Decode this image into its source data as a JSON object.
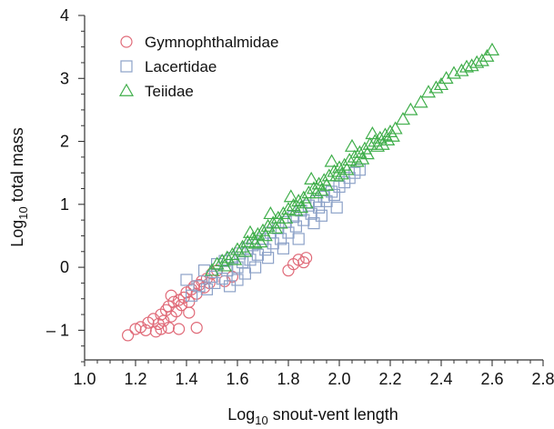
{
  "chart_data": {
    "type": "scatter",
    "title": "",
    "xlabel": {
      "prefix": "Log",
      "subscript": "10",
      "rest": " snout-vent length"
    },
    "ylabel": {
      "prefix": "Log",
      "subscript": "10",
      "rest": " total mass"
    },
    "xlim": [
      1.0,
      2.8
    ],
    "ylim": [
      -1.5,
      4.0
    ],
    "x_ticks": [
      {
        "value": 1.0,
        "label": "1.0"
      },
      {
        "value": 1.2,
        "label": "1.2"
      },
      {
        "value": 1.4,
        "label": "1.4"
      },
      {
        "value": 1.6,
        "label": "1.6"
      },
      {
        "value": 1.8,
        "label": "1.8"
      },
      {
        "value": 2.0,
        "label": "2.0"
      },
      {
        "value": 2.2,
        "label": "2.2"
      },
      {
        "value": 2.4,
        "label": "2.4"
      },
      {
        "value": 2.6,
        "label": "2.6"
      },
      {
        "value": 2.8,
        "label": "2.8"
      }
    ],
    "y_ticks": [
      {
        "value": -1,
        "label": "– 1"
      },
      {
        "value": 0,
        "label": "0"
      },
      {
        "value": 1,
        "label": "1"
      },
      {
        "value": 2,
        "label": "2"
      },
      {
        "value": 3,
        "label": "3"
      },
      {
        "value": 4,
        "label": "4"
      }
    ],
    "grid": false,
    "legend_position": "top-left",
    "series": [
      {
        "name": "Gymnophthalmidae",
        "marker": "circle",
        "color": "#e06a78",
        "points": [
          [
            1.17,
            -1.08
          ],
          [
            1.2,
            -0.98
          ],
          [
            1.22,
            -0.95
          ],
          [
            1.24,
            -1.0
          ],
          [
            1.25,
            -0.88
          ],
          [
            1.27,
            -0.82
          ],
          [
            1.28,
            -1.02
          ],
          [
            1.29,
            -0.9
          ],
          [
            1.3,
            -0.75
          ],
          [
            1.31,
            -0.85
          ],
          [
            1.32,
            -0.68
          ],
          [
            1.33,
            -0.62
          ],
          [
            1.34,
            -0.78
          ],
          [
            1.35,
            -0.55
          ],
          [
            1.36,
            -0.7
          ],
          [
            1.37,
            -0.52
          ],
          [
            1.38,
            -0.6
          ],
          [
            1.39,
            -0.48
          ],
          [
            1.4,
            -0.4
          ],
          [
            1.41,
            -0.55
          ],
          [
            1.42,
            -0.35
          ],
          [
            1.43,
            -0.3
          ],
          [
            1.44,
            -0.42
          ],
          [
            1.45,
            -0.28
          ],
          [
            1.46,
            -0.22
          ],
          [
            1.47,
            -0.32
          ],
          [
            1.48,
            -0.18
          ],
          [
            1.49,
            -0.25
          ],
          [
            1.5,
            -0.1
          ],
          [
            1.3,
            -0.98
          ],
          [
            1.33,
            -0.96
          ],
          [
            1.37,
            -0.98
          ],
          [
            1.44,
            -0.96
          ],
          [
            1.41,
            -0.72
          ],
          [
            1.34,
            -0.45
          ],
          [
            1.52,
            -0.05
          ],
          [
            1.55,
            -0.22
          ],
          [
            1.58,
            -0.15
          ],
          [
            1.8,
            -0.05
          ],
          [
            1.82,
            0.05
          ],
          [
            1.84,
            0.12
          ],
          [
            1.86,
            0.08
          ],
          [
            1.87,
            0.15
          ]
        ]
      },
      {
        "name": "Lacertidae",
        "marker": "square",
        "color": "#8da2c8",
        "points": [
          [
            1.4,
            -0.2
          ],
          [
            1.42,
            -0.45
          ],
          [
            1.45,
            -0.3
          ],
          [
            1.47,
            -0.05
          ],
          [
            1.48,
            -0.35
          ],
          [
            1.5,
            -0.15
          ],
          [
            1.51,
            -0.25
          ],
          [
            1.52,
            0.05
          ],
          [
            1.54,
            -0.18
          ],
          [
            1.55,
            0.1
          ],
          [
            1.56,
            -0.05
          ],
          [
            1.58,
            0.15
          ],
          [
            1.6,
            0.0
          ],
          [
            1.61,
            0.22
          ],
          [
            1.62,
            0.08
          ],
          [
            1.64,
            0.3
          ],
          [
            1.65,
            0.12
          ],
          [
            1.66,
            0.35
          ],
          [
            1.68,
            0.2
          ],
          [
            1.7,
            0.45
          ],
          [
            1.71,
            0.28
          ],
          [
            1.73,
            0.55
          ],
          [
            1.74,
            0.38
          ],
          [
            1.76,
            0.62
          ],
          [
            1.77,
            0.45
          ],
          [
            1.79,
            0.72
          ],
          [
            1.8,
            0.55
          ],
          [
            1.82,
            0.8
          ],
          [
            1.83,
            0.65
          ],
          [
            1.85,
            0.9
          ],
          [
            1.86,
            0.75
          ],
          [
            1.88,
            0.98
          ],
          [
            1.89,
            0.85
          ],
          [
            1.91,
            1.05
          ],
          [
            1.92,
            0.95
          ],
          [
            1.94,
            1.12
          ],
          [
            1.95,
            1.05
          ],
          [
            1.97,
            1.2
          ],
          [
            1.98,
            1.15
          ],
          [
            2.0,
            1.28
          ],
          [
            2.02,
            1.35
          ],
          [
            2.04,
            1.42
          ],
          [
            2.06,
            1.5
          ],
          [
            2.08,
            1.55
          ],
          [
            1.57,
            -0.3
          ],
          [
            1.6,
            -0.2
          ],
          [
            1.63,
            -0.1
          ],
          [
            1.67,
            0.0
          ],
          [
            1.72,
            0.15
          ],
          [
            1.78,
            0.3
          ],
          [
            1.84,
            0.45
          ],
          [
            1.9,
            0.7
          ],
          [
            1.93,
            0.82
          ],
          [
            1.99,
            0.95
          ]
        ]
      },
      {
        "name": "Teiidae",
        "marker": "triangle",
        "color": "#3fae4a",
        "points": [
          [
            1.5,
            -0.05
          ],
          [
            1.52,
            0.05
          ],
          [
            1.54,
            0.1
          ],
          [
            1.55,
            0.02
          ],
          [
            1.56,
            0.15
          ],
          [
            1.58,
            0.2
          ],
          [
            1.59,
            0.12
          ],
          [
            1.6,
            0.28
          ],
          [
            1.62,
            0.32
          ],
          [
            1.63,
            0.25
          ],
          [
            1.64,
            0.4
          ],
          [
            1.66,
            0.45
          ],
          [
            1.67,
            0.38
          ],
          [
            1.68,
            0.52
          ],
          [
            1.7,
            0.58
          ],
          [
            1.71,
            0.5
          ],
          [
            1.72,
            0.65
          ],
          [
            1.74,
            0.7
          ],
          [
            1.75,
            0.62
          ],
          [
            1.76,
            0.78
          ],
          [
            1.78,
            0.85
          ],
          [
            1.79,
            0.78
          ],
          [
            1.8,
            0.92
          ],
          [
            1.82,
            0.98
          ],
          [
            1.83,
            0.9
          ],
          [
            1.84,
            1.05
          ],
          [
            1.86,
            1.1
          ],
          [
            1.87,
            1.02
          ],
          [
            1.88,
            1.18
          ],
          [
            1.9,
            1.25
          ],
          [
            1.91,
            1.18
          ],
          [
            1.92,
            1.32
          ],
          [
            1.94,
            1.38
          ],
          [
            1.95,
            1.3
          ],
          [
            1.96,
            1.45
          ],
          [
            1.98,
            1.52
          ],
          [
            1.99,
            1.45
          ],
          [
            2.0,
            1.58
          ],
          [
            2.02,
            1.62
          ],
          [
            2.03,
            1.55
          ],
          [
            2.04,
            1.7
          ],
          [
            2.06,
            1.75
          ],
          [
            2.07,
            1.68
          ],
          [
            2.08,
            1.82
          ],
          [
            2.1,
            1.88
          ],
          [
            2.11,
            1.8
          ],
          [
            2.12,
            1.95
          ],
          [
            2.14,
            2.0
          ],
          [
            2.15,
            1.92
          ],
          [
            2.16,
            2.05
          ],
          [
            2.18,
            2.1
          ],
          [
            2.19,
            2.02
          ],
          [
            2.2,
            2.15
          ],
          [
            2.21,
            2.08
          ],
          [
            2.22,
            2.2
          ],
          [
            2.25,
            2.35
          ],
          [
            2.28,
            2.5
          ],
          [
            2.32,
            2.62
          ],
          [
            2.35,
            2.78
          ],
          [
            2.38,
            2.85
          ],
          [
            2.4,
            2.9
          ],
          [
            2.42,
            3.0
          ],
          [
            2.45,
            3.08
          ],
          [
            2.48,
            3.12
          ],
          [
            2.5,
            3.18
          ],
          [
            2.52,
            3.2
          ],
          [
            2.54,
            3.25
          ],
          [
            2.56,
            3.28
          ],
          [
            2.58,
            3.35
          ],
          [
            2.6,
            3.45
          ],
          [
            1.65,
            0.55
          ],
          [
            1.73,
            0.85
          ],
          [
            1.81,
            1.12
          ],
          [
            1.89,
            1.4
          ],
          [
            1.97,
            1.68
          ],
          [
            2.05,
            1.92
          ],
          [
            2.13,
            2.12
          ],
          [
            1.69,
            0.4
          ],
          [
            1.77,
            0.7
          ],
          [
            1.85,
            0.95
          ],
          [
            1.93,
            1.22
          ],
          [
            2.01,
            1.48
          ],
          [
            2.09,
            1.72
          ],
          [
            2.17,
            1.95
          ]
        ]
      }
    ]
  }
}
